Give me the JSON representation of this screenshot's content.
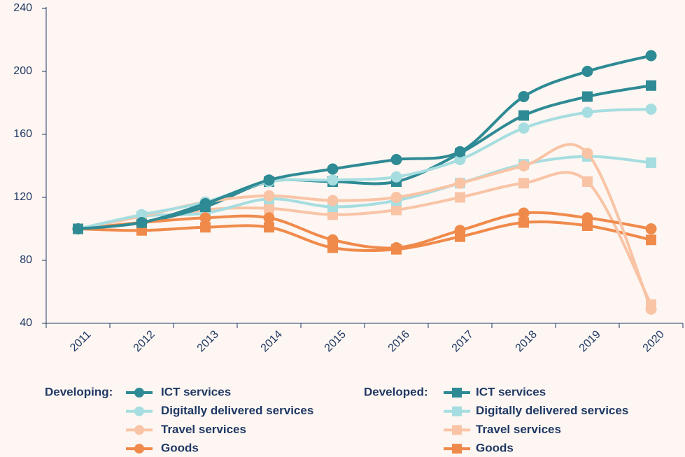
{
  "chart_data": {
    "type": "line",
    "categories": [
      "2011",
      "2012",
      "2013",
      "2014",
      "2015",
      "2016",
      "2017",
      "2018",
      "2019",
      "2020"
    ],
    "ylim": [
      40,
      240
    ],
    "yticks": [
      40,
      80,
      120,
      160,
      200,
      240
    ],
    "series": [
      {
        "name": "ICT services",
        "group": "Developing:",
        "marker": "circle",
        "color": "#2e8a94",
        "values": [
          100,
          104,
          116,
          131,
          138,
          144,
          149,
          184,
          200,
          210
        ]
      },
      {
        "name": "Digitally delivered services",
        "group": "Developing:",
        "marker": "circle",
        "color": "#a6dde0",
        "values": [
          100,
          109,
          117,
          130,
          131,
          133,
          144,
          164,
          174,
          176
        ]
      },
      {
        "name": "Travel services",
        "group": "Developing:",
        "marker": "circle",
        "color": "#f9c4a6",
        "values": [
          100,
          108,
          117,
          121,
          118,
          120,
          129,
          140,
          148,
          49
        ]
      },
      {
        "name": "Goods",
        "group": "Developing:",
        "marker": "circle",
        "color": "#f08a4b",
        "values": [
          100,
          104,
          107,
          107,
          93,
          88,
          99,
          110,
          107,
          100
        ]
      },
      {
        "name": "ICT services",
        "group": "Developed:",
        "marker": "square",
        "color": "#2e8a94",
        "values": [
          100,
          104,
          114,
          130,
          130,
          130,
          148,
          172,
          184,
          191
        ]
      },
      {
        "name": "Digitally delivered services",
        "group": "Developed:",
        "marker": "square",
        "color": "#a6dde0",
        "values": [
          100,
          108,
          110,
          119,
          114,
          118,
          129,
          141,
          146,
          142
        ]
      },
      {
        "name": "Travel services",
        "group": "Developed:",
        "marker": "square",
        "color": "#f9c4a6",
        "values": [
          100,
          104,
          112,
          113,
          109,
          112,
          120,
          129,
          130,
          52
        ]
      },
      {
        "name": "Goods",
        "group": "Developed:",
        "marker": "square",
        "color": "#f08a4b",
        "values": [
          100,
          99,
          101,
          101,
          88,
          87,
          95,
          104,
          102,
          93
        ]
      }
    ]
  }
}
